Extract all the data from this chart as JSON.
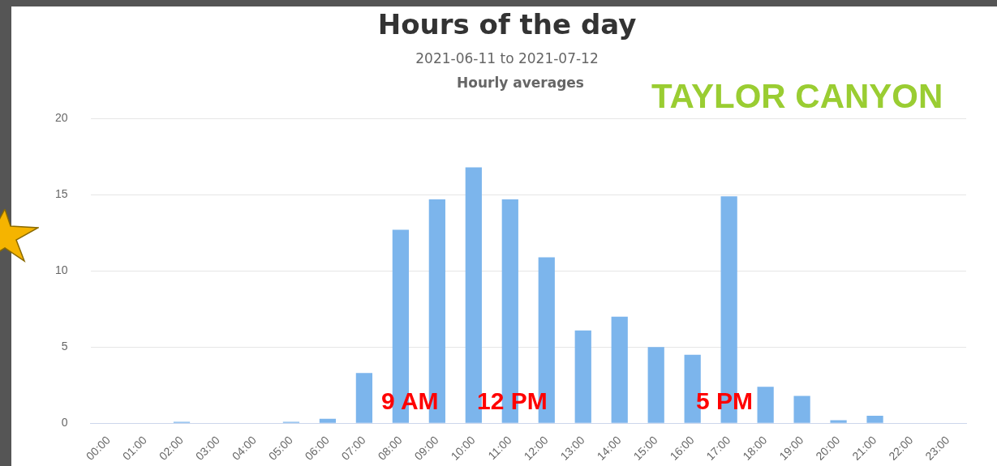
{
  "chart_data": {
    "type": "bar",
    "title": "Hours of the day",
    "subtitle": "2021-06-11 to 2021-07-12",
    "categories": [
      "00:00",
      "01:00",
      "02:00",
      "03:00",
      "04:00",
      "05:00",
      "06:00",
      "07:00",
      "08:00",
      "09:00",
      "10:00",
      "11:00",
      "12:00",
      "13:00",
      "14:00",
      "15:00",
      "16:00",
      "17:00",
      "18:00",
      "19:00",
      "20:00",
      "21:00",
      "22:00",
      "23:00"
    ],
    "values": [
      0,
      0,
      0.1,
      0,
      0,
      0.1,
      0.3,
      3.3,
      12.7,
      14.7,
      16.8,
      14.7,
      10.9,
      6.1,
      7.0,
      5.0,
      4.5,
      14.9,
      2.4,
      1.8,
      0.2,
      0.5,
      0,
      0
    ],
    "color": "#7cb5ec",
    "ylim": [
      0,
      20
    ],
    "yticks": [
      0,
      5,
      10,
      15,
      20
    ],
    "grid": "y",
    "legend": false,
    "annotations": [
      "Hourly averages",
      "TAYLOR CANYON",
      "9 AM",
      "12 PM",
      "5 PM"
    ]
  }
}
